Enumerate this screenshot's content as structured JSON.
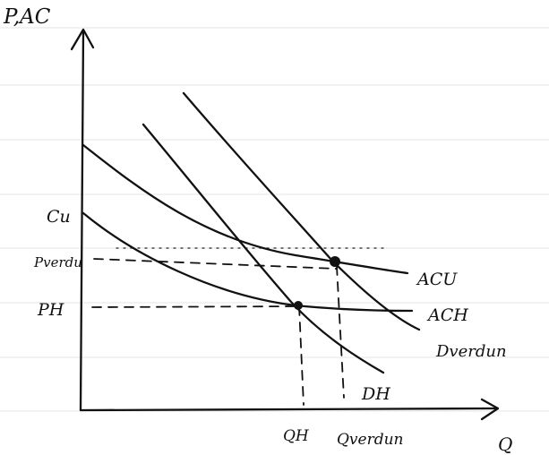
{
  "axes": {
    "y_label": "P,AC",
    "x_label": "Q"
  },
  "y_ticks": {
    "cu": "Cu",
    "p_verdun": "Pverdu",
    "p_h": "PH"
  },
  "x_ticks": {
    "q_h": "QH",
    "q_verdun": "Qverdun"
  },
  "curves": {
    "acu": "ACU",
    "ach": "ACH",
    "d_verdun": "Dverdun",
    "dh": "DH"
  },
  "colors": {
    "ink": "#111111",
    "paper": "#ffffff",
    "ruled_line": "#e6e6e6"
  }
}
